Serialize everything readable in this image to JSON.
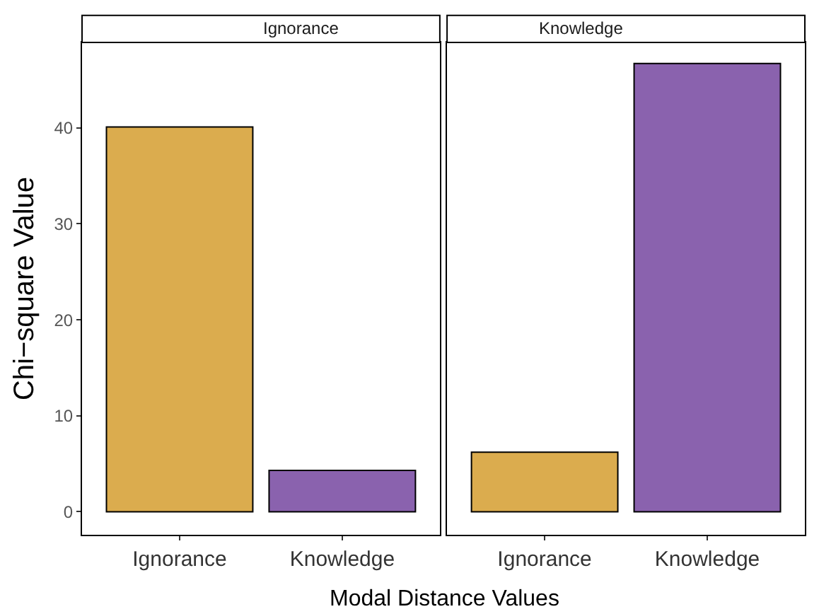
{
  "chart_data": [
    {
      "type": "bar",
      "title": "Ignorance",
      "ylabel": "Chi−square Value",
      "xlabel": "Modal Distance Values",
      "categories": [
        "Ignorance",
        "Knowledge"
      ],
      "values": [
        40.1,
        4.3
      ],
      "colors": [
        "#dbac4e",
        "#8a62ae"
      ],
      "ylim": [
        -2.4,
        48.9
      ],
      "yticks": [
        0,
        10,
        20,
        30,
        40
      ]
    },
    {
      "type": "bar",
      "title": "Knowledge",
      "categories": [
        "Ignorance",
        "Knowledge"
      ],
      "values": [
        6.2,
        46.7
      ],
      "colors": [
        "#dbac4e",
        "#8a62ae"
      ],
      "ylim": [
        -2.4,
        48.9
      ],
      "yticks": [
        0,
        10,
        20,
        30,
        40
      ],
      "tick_labels": "x"
    }
  ]
}
